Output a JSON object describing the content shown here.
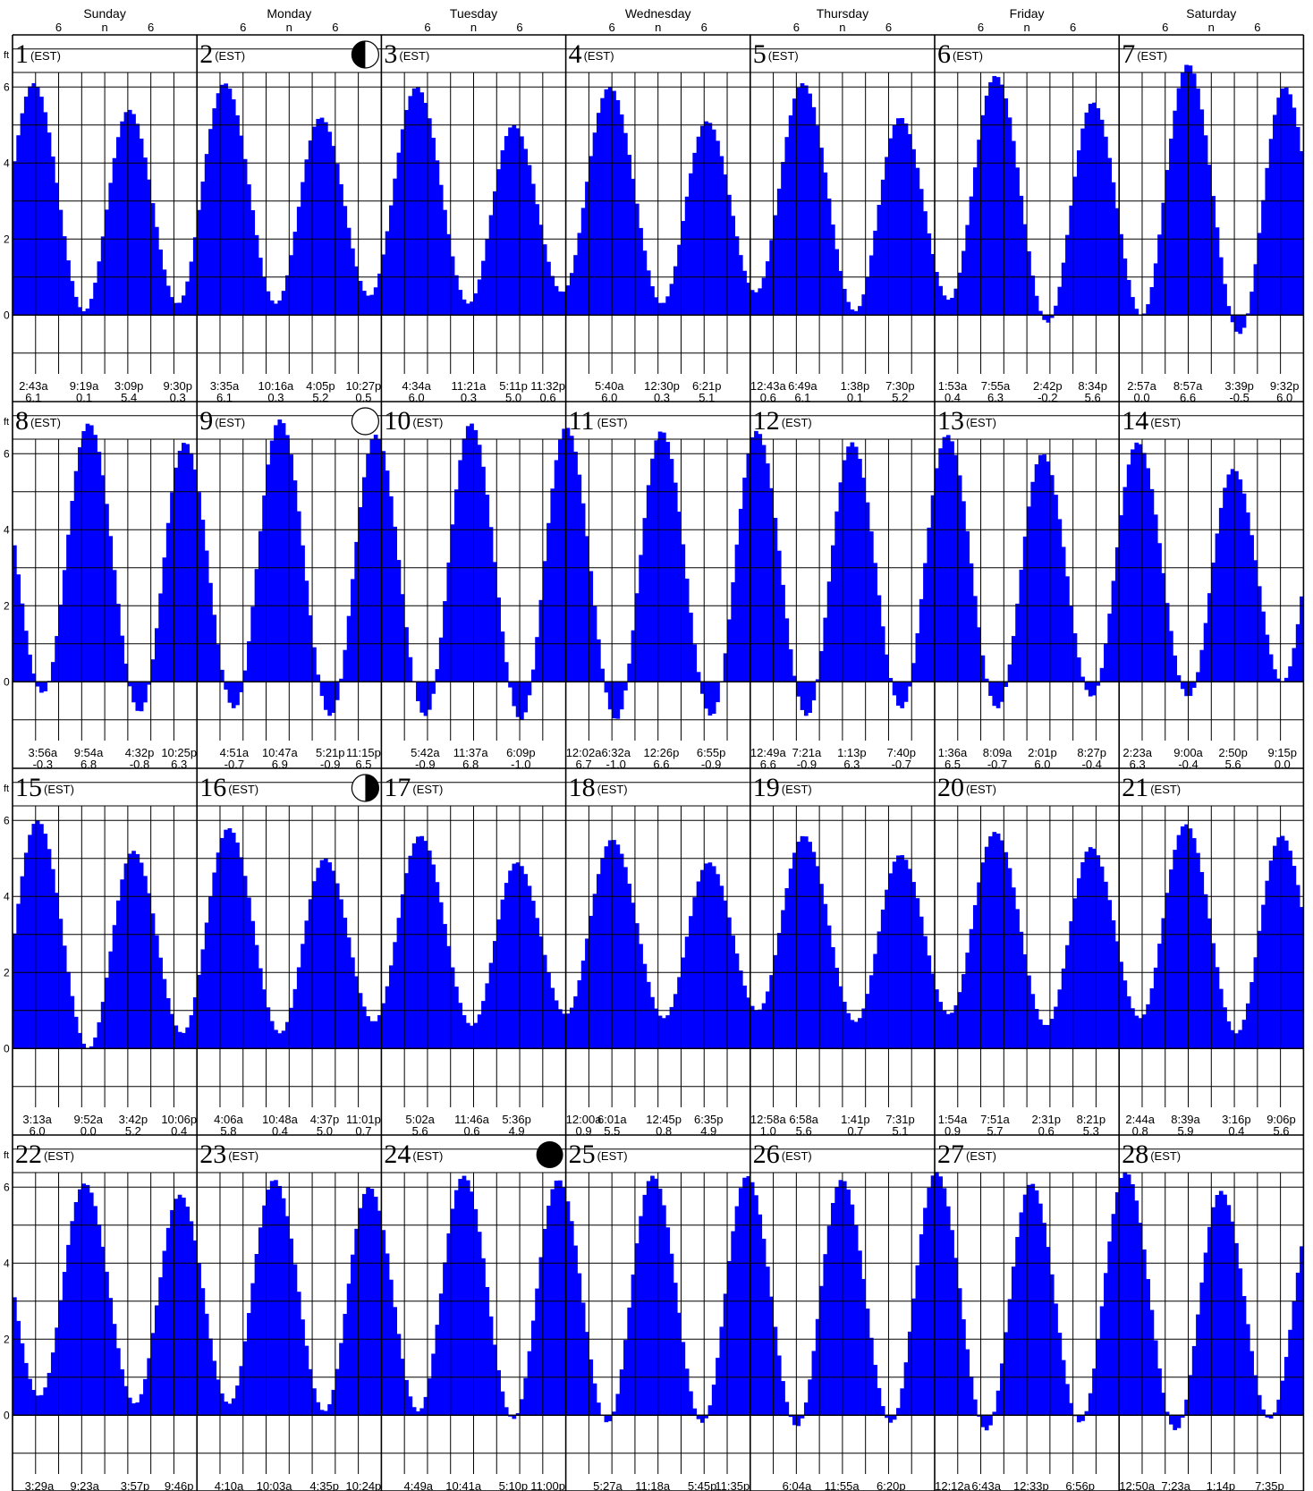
{
  "calendar": {
    "weekdays": [
      "Sunday",
      "Monday",
      "Tuesday",
      "Wednesday",
      "Thursday",
      "Friday",
      "Saturday"
    ],
    "hour_marks": [
      "6",
      "n",
      "6"
    ],
    "unit_label": "ft",
    "tz_label": "(EST)",
    "y_tick_labels": [
      "0",
      "2",
      "4",
      "6"
    ],
    "colors": {
      "tide_fill": "#0000ff",
      "grid": "#000000",
      "background": "#ffffff"
    }
  },
  "chart_data": {
    "type": "bar",
    "title": "",
    "xlabel": "",
    "ylabel": "ft",
    "ylim": [
      -1.5,
      7
    ],
    "grid": true,
    "days": [
      {
        "day": 1,
        "moon": null,
        "tides": [
          {
            "time": "2:43a",
            "height": 6.1
          },
          {
            "time": "9:19a",
            "height": 0.1
          },
          {
            "time": "3:09p",
            "height": 5.4
          },
          {
            "time": "9:30p",
            "height": 0.3
          }
        ]
      },
      {
        "day": 2,
        "moon": "first-quarter",
        "tides": [
          {
            "time": "3:35a",
            "height": 6.1
          },
          {
            "time": "10:16a",
            "height": 0.3
          },
          {
            "time": "4:05p",
            "height": 5.2
          },
          {
            "time": "10:27p",
            "height": 0.5
          }
        ]
      },
      {
        "day": 3,
        "moon": null,
        "tides": [
          {
            "time": "4:34a",
            "height": 6.0
          },
          {
            "time": "11:21a",
            "height": 0.3
          },
          {
            "time": "5:11p",
            "height": 5.0
          },
          {
            "time": "11:32p",
            "height": 0.6
          }
        ]
      },
      {
        "day": 4,
        "moon": null,
        "tides": [
          {
            "time": "5:40a",
            "height": 6.0
          },
          {
            "time": "12:30p",
            "height": 0.3
          },
          {
            "time": "6:21p",
            "height": 5.1
          }
        ]
      },
      {
        "day": 5,
        "moon": null,
        "tides": [
          {
            "time": "12:43a",
            "height": 0.6
          },
          {
            "time": "6:49a",
            "height": 6.1
          },
          {
            "time": "1:38p",
            "height": 0.1
          },
          {
            "time": "7:30p",
            "height": 5.2
          }
        ]
      },
      {
        "day": 6,
        "moon": null,
        "tides": [
          {
            "time": "1:53a",
            "height": 0.4
          },
          {
            "time": "7:55a",
            "height": 6.3
          },
          {
            "time": "2:42p",
            "height": -0.2
          },
          {
            "time": "8:34p",
            "height": 5.6
          }
        ]
      },
      {
        "day": 7,
        "moon": null,
        "tides": [
          {
            "time": "2:57a",
            "height": 0.0
          },
          {
            "time": "8:57a",
            "height": 6.6
          },
          {
            "time": "3:39p",
            "height": -0.5
          },
          {
            "time": "9:32p",
            "height": 6.0
          }
        ]
      },
      {
        "day": 8,
        "moon": null,
        "tides": [
          {
            "time": "3:56a",
            "height": -0.3
          },
          {
            "time": "9:54a",
            "height": 6.8
          },
          {
            "time": "4:32p",
            "height": -0.8
          },
          {
            "time": "10:25p",
            "height": 6.3
          }
        ]
      },
      {
        "day": 9,
        "moon": "full",
        "tides": [
          {
            "time": "4:51a",
            "height": -0.7
          },
          {
            "time": "10:47a",
            "height": 6.9
          },
          {
            "time": "5:21p",
            "height": -0.9
          },
          {
            "time": "11:15p",
            "height": 6.5
          }
        ]
      },
      {
        "day": 10,
        "moon": null,
        "tides": [
          {
            "time": "5:42a",
            "height": -0.9
          },
          {
            "time": "11:37a",
            "height": 6.8
          },
          {
            "time": "6:09p",
            "height": -1.0
          }
        ]
      },
      {
        "day": 11,
        "moon": null,
        "tides": [
          {
            "time": "12:02a",
            "height": 6.7
          },
          {
            "time": "6:32a",
            "height": -1.0
          },
          {
            "time": "12:26p",
            "height": 6.6
          },
          {
            "time": "6:55p",
            "height": -0.9
          }
        ]
      },
      {
        "day": 12,
        "moon": null,
        "tides": [
          {
            "time": "12:49a",
            "height": 6.6
          },
          {
            "time": "7:21a",
            "height": -0.9
          },
          {
            "time": "1:13p",
            "height": 6.3
          },
          {
            "time": "7:40p",
            "height": -0.7
          }
        ]
      },
      {
        "day": 13,
        "moon": null,
        "tides": [
          {
            "time": "1:36a",
            "height": 6.5
          },
          {
            "time": "8:09a",
            "height": -0.7
          },
          {
            "time": "2:01p",
            "height": 6.0
          },
          {
            "time": "8:27p",
            "height": -0.4
          }
        ]
      },
      {
        "day": 14,
        "moon": null,
        "tides": [
          {
            "time": "2:23a",
            "height": 6.3
          },
          {
            "time": "9:00a",
            "height": -0.4
          },
          {
            "time": "2:50p",
            "height": 5.6
          },
          {
            "time": "9:15p",
            "height": 0.0
          }
        ]
      },
      {
        "day": 15,
        "moon": null,
        "tides": [
          {
            "time": "3:13a",
            "height": 6.0
          },
          {
            "time": "9:52a",
            "height": 0.0
          },
          {
            "time": "3:42p",
            "height": 5.2
          },
          {
            "time": "10:06p",
            "height": 0.4
          }
        ]
      },
      {
        "day": 16,
        "moon": "last-quarter",
        "tides": [
          {
            "time": "4:06a",
            "height": 5.8
          },
          {
            "time": "10:48a",
            "height": 0.4
          },
          {
            "time": "4:37p",
            "height": 5.0
          },
          {
            "time": "11:01p",
            "height": 0.7
          }
        ]
      },
      {
        "day": 17,
        "moon": null,
        "tides": [
          {
            "time": "5:02a",
            "height": 5.6
          },
          {
            "time": "11:46a",
            "height": 0.6
          },
          {
            "time": "5:36p",
            "height": 4.9
          }
        ]
      },
      {
        "day": 18,
        "moon": null,
        "tides": [
          {
            "time": "12:00a",
            "height": 0.9
          },
          {
            "time": "6:01a",
            "height": 5.5
          },
          {
            "time": "12:45p",
            "height": 0.8
          },
          {
            "time": "6:35p",
            "height": 4.9
          }
        ]
      },
      {
        "day": 19,
        "moon": null,
        "tides": [
          {
            "time": "12:58a",
            "height": 1.0
          },
          {
            "time": "6:58a",
            "height": 5.6
          },
          {
            "time": "1:41p",
            "height": 0.7
          },
          {
            "time": "7:31p",
            "height": 5.1
          }
        ]
      },
      {
        "day": 20,
        "moon": null,
        "tides": [
          {
            "time": "1:54a",
            "height": 0.9
          },
          {
            "time": "7:51a",
            "height": 5.7
          },
          {
            "time": "2:31p",
            "height": 0.6
          },
          {
            "time": "8:21p",
            "height": 5.3
          }
        ]
      },
      {
        "day": 21,
        "moon": null,
        "tides": [
          {
            "time": "2:44a",
            "height": 0.8
          },
          {
            "time": "8:39a",
            "height": 5.9
          },
          {
            "time": "3:16p",
            "height": 0.4
          },
          {
            "time": "9:06p",
            "height": 5.6
          }
        ]
      },
      {
        "day": 22,
        "moon": null,
        "tides": [
          {
            "time": "3:29a",
            "height": 0.5
          },
          {
            "time": "9:23a",
            "height": 6.1
          },
          {
            "time": "3:57p",
            "height": 0.3
          },
          {
            "time": "9:46p",
            "height": 5.8
          }
        ]
      },
      {
        "day": 23,
        "moon": null,
        "tides": [
          {
            "time": "4:10a",
            "height": 0.3
          },
          {
            "time": "10:03a",
            "height": 6.2
          },
          {
            "time": "4:35p",
            "height": 0.1
          },
          {
            "time": "10:24p",
            "height": 6.0
          }
        ]
      },
      {
        "day": 24,
        "moon": "new",
        "tides": [
          {
            "time": "4:49a",
            "height": 0.1
          },
          {
            "time": "10:41a",
            "height": 6.3
          },
          {
            "time": "5:10p",
            "height": -0.1
          },
          {
            "time": "11:00p",
            "height": 6.2
          }
        ]
      },
      {
        "day": 25,
        "moon": null,
        "tides": [
          {
            "time": "5:27a",
            "height": -0.2
          },
          {
            "time": "11:18a",
            "height": 6.3
          },
          {
            "time": "5:45p",
            "height": -0.2
          },
          {
            "time": "11:35p",
            "height": 6.3
          }
        ]
      },
      {
        "day": 26,
        "moon": null,
        "tides": [
          {
            "time": "6:04a",
            "height": -0.3
          },
          {
            "time": "11:55a",
            "height": 6.2
          },
          {
            "time": "6:20p",
            "height": -0.2
          }
        ]
      },
      {
        "day": 27,
        "moon": null,
        "tides": [
          {
            "time": "12:12a",
            "height": 6.4
          },
          {
            "time": "6:43a",
            "height": -0.4
          },
          {
            "time": "12:33p",
            "height": 6.1
          },
          {
            "time": "6:56p",
            "height": -0.2
          }
        ]
      },
      {
        "day": 28,
        "moon": null,
        "tides": [
          {
            "time": "12:50a",
            "height": 6.4
          },
          {
            "time": "7:23a",
            "height": -0.4
          },
          {
            "time": "1:14p",
            "height": 5.9
          },
          {
            "time": "7:35p",
            "height": -0.1
          }
        ]
      }
    ]
  }
}
